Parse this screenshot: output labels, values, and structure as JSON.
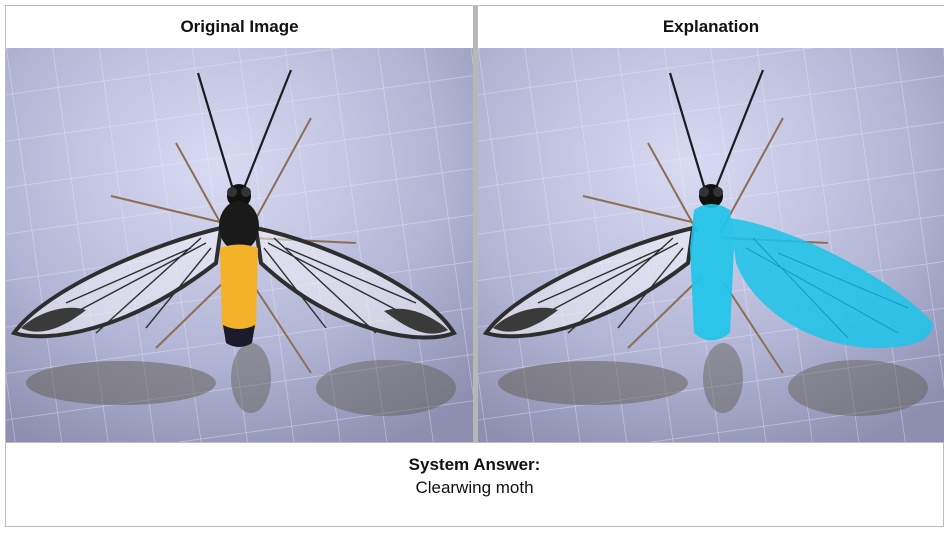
{
  "panels": {
    "left": {
      "title": "Original Image"
    },
    "right": {
      "title": "Explanation"
    }
  },
  "answer": {
    "label": "System Answer:",
    "value": "Clearwing moth"
  },
  "colors": {
    "highlight": "#1fc4e8",
    "body_yellow": "#f2b22a",
    "background_fabric": "#b6b7d6"
  }
}
